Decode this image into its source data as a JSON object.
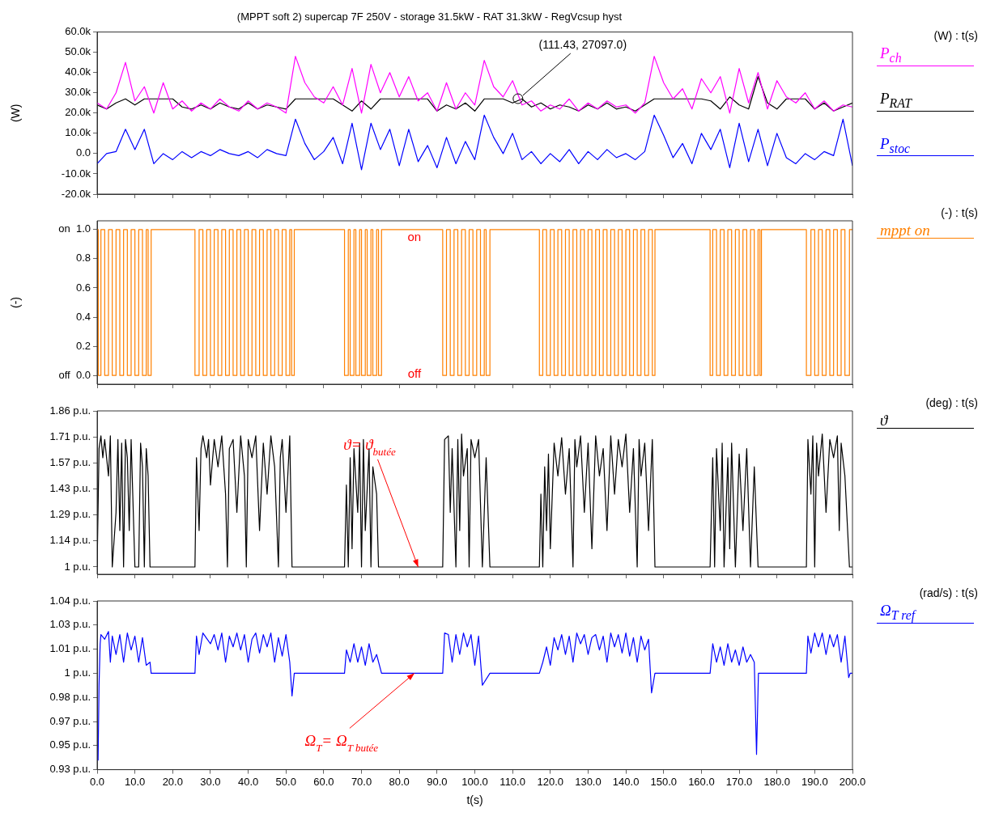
{
  "chart_data": [
    {
      "type": "line",
      "title": "(MPPT soft 2) supercap 7F 250V - storage 31.5kW - RAT 31.3kW - RegVcsup hyst",
      "ylabel": "(W)",
      "legend": "right",
      "marker": "none",
      "tick_labels": "y",
      "annotations": [
        "(W) : t(s)",
        {
          "text": "(111.43, 27097.0)",
          "x": 111.43,
          "y": 27097
        }
      ],
      "xlim": [
        0,
        200
      ],
      "xticks": [
        {
          "value": 0,
          "label": null
        },
        {
          "value": 10,
          "label": null
        },
        {
          "value": 20,
          "label": null
        },
        {
          "value": 30,
          "label": null
        },
        {
          "value": 40,
          "label": null
        },
        {
          "value": 50,
          "label": null
        },
        {
          "value": 60,
          "label": null
        },
        {
          "value": 70,
          "label": null
        },
        {
          "value": 80,
          "label": null
        },
        {
          "value": 90,
          "label": null
        },
        {
          "value": 100,
          "label": null
        },
        {
          "value": 110,
          "label": null
        },
        {
          "value": 120,
          "label": null
        },
        {
          "value": 130,
          "label": null
        },
        {
          "value": 140,
          "label": null
        },
        {
          "value": 150,
          "label": null
        },
        {
          "value": 160,
          "label": null
        },
        {
          "value": 170,
          "label": null
        },
        {
          "value": 180,
          "label": null
        },
        {
          "value": 190,
          "label": null
        },
        {
          "value": 200,
          "label": null
        }
      ],
      "ylim": [
        -20000,
        60000
      ],
      "yticks": [
        {
          "value": -20000,
          "label": "-20.0k"
        },
        {
          "value": -10000,
          "label": "-10.0k"
        },
        {
          "value": 0,
          "label": "0.0"
        },
        {
          "value": 10000,
          "label": "10.0k"
        },
        {
          "value": 20000,
          "label": "20.0k"
        },
        {
          "value": 30000,
          "label": "30.0k"
        },
        {
          "value": 40000,
          "label": "40.0k"
        },
        {
          "value": 50000,
          "label": "50.0k"
        },
        {
          "value": 60000,
          "label": "60.0k"
        }
      ],
      "x": [
        0,
        2.5,
        5,
        7.5,
        10,
        12.5,
        15,
        17.5,
        20,
        22.5,
        25,
        27.5,
        30,
        32.5,
        35,
        37.5,
        40,
        42.5,
        45,
        47.5,
        50,
        52.5,
        55,
        57.5,
        60,
        62.5,
        65,
        67.5,
        70,
        72.5,
        75,
        77.5,
        80,
        82.5,
        85,
        87.5,
        90,
        92.5,
        95,
        97.5,
        100,
        102.5,
        105,
        107.5,
        110,
        112.5,
        115,
        117.5,
        120,
        122.5,
        125,
        127.5,
        130,
        132.5,
        135,
        137.5,
        140,
        142.5,
        145,
        147.5,
        150,
        152.5,
        155,
        157.5,
        160,
        162.5,
        165,
        167.5,
        170,
        172.5,
        175,
        177.5,
        180,
        182.5,
        185,
        187.5,
        190,
        192.5,
        195,
        197.5,
        200
      ],
      "series": [
        {
          "name": "P$_{ch}$",
          "color": "#ff00ff",
          "values": [
            25000,
            22000,
            30000,
            45000,
            26000,
            33000,
            20000,
            35000,
            22000,
            26000,
            21000,
            25000,
            22000,
            27000,
            23000,
            21000,
            26000,
            22000,
            25000,
            23000,
            20000,
            48000,
            35000,
            28000,
            25000,
            33000,
            24000,
            42000,
            20000,
            44000,
            30000,
            40000,
            28000,
            38000,
            26000,
            30000,
            21000,
            35000,
            22000,
            30000,
            24000,
            46000,
            33000,
            28000,
            36000,
            24000,
            26000,
            21000,
            24000,
            22000,
            27000,
            21000,
            25000,
            22000,
            26000,
            23000,
            24000,
            20000,
            25000,
            48000,
            35000,
            27000,
            32000,
            22000,
            37000,
            30000,
            38000,
            20000,
            42000,
            25000,
            40000,
            22000,
            36000,
            28000,
            25000,
            30000,
            22000,
            26000,
            21000,
            24000,
            23000
          ]
        },
        {
          "name": "P$_{RAT}$",
          "color": "#000000",
          "values": [
            24000,
            22000,
            25000,
            27000,
            24000,
            27000,
            27000,
            27000,
            27000,
            23000,
            22000,
            24000,
            22000,
            25000,
            23000,
            22000,
            25000,
            22000,
            24000,
            23000,
            22000,
            27000,
            27000,
            27000,
            27000,
            27000,
            24000,
            21000,
            26000,
            22000,
            27000,
            27000,
            27000,
            27000,
            27000,
            27000,
            21000,
            24000,
            22000,
            25000,
            21000,
            27000,
            27000,
            27000,
            25000,
            27000,
            23000,
            25000,
            22000,
            24000,
            23000,
            21000,
            24000,
            22000,
            25000,
            22000,
            23000,
            21000,
            24000,
            27000,
            27000,
            27000,
            27000,
            27000,
            27000,
            26000,
            22000,
            28000,
            24000,
            22000,
            38000,
            25000,
            22000,
            27000,
            27000,
            27000,
            22000,
            25000,
            21000,
            23000,
            25000
          ]
        },
        {
          "name": "P$_{stoc}$",
          "color": "#0000ff",
          "values": [
            -5000,
            0,
            1000,
            12000,
            2000,
            12000,
            -5000,
            0,
            -3000,
            1000,
            -2000,
            1000,
            -1000,
            2000,
            0,
            -1000,
            1000,
            -2000,
            2000,
            0,
            -1000,
            17000,
            5000,
            -3000,
            1000,
            8000,
            -5000,
            15000,
            -8000,
            15000,
            2000,
            12000,
            -6000,
            12000,
            -4000,
            4000,
            -7000,
            8000,
            -5000,
            6000,
            -3000,
            19000,
            8000,
            0,
            10000,
            -3000,
            1000,
            -5000,
            0,
            -4000,
            2000,
            -5000,
            1000,
            -3000,
            2000,
            -2000,
            0,
            -3000,
            1000,
            19000,
            9000,
            -2000,
            5000,
            -5000,
            10000,
            2000,
            12000,
            -7000,
            15000,
            -4000,
            12000,
            -6000,
            10000,
            -2000,
            -5000,
            0,
            -3000,
            1000,
            -1000,
            17000,
            -6000
          ]
        }
      ]
    },
    {
      "type": "step",
      "ylabel": "(-)",
      "legend": "right",
      "marker": "none",
      "tick_labels": "y",
      "annotations": [
        "(-) : t(s)",
        "on",
        "off"
      ],
      "xlim": [
        0,
        200
      ],
      "xticks": [
        {
          "value": 0,
          "label": null
        },
        {
          "value": 10,
          "label": null
        },
        {
          "value": 20,
          "label": null
        },
        {
          "value": 30,
          "label": null
        },
        {
          "value": 40,
          "label": null
        },
        {
          "value": 50,
          "label": null
        },
        {
          "value": 60,
          "label": null
        },
        {
          "value": 70,
          "label": null
        },
        {
          "value": 80,
          "label": null
        },
        {
          "value": 90,
          "label": null
        },
        {
          "value": 100,
          "label": null
        },
        {
          "value": 110,
          "label": null
        },
        {
          "value": 120,
          "label": null
        },
        {
          "value": 130,
          "label": null
        },
        {
          "value": 140,
          "label": null
        },
        {
          "value": 150,
          "label": null
        },
        {
          "value": 160,
          "label": null
        },
        {
          "value": 170,
          "label": null
        },
        {
          "value": 180,
          "label": null
        },
        {
          "value": 190,
          "label": null
        },
        {
          "value": 200,
          "label": null
        }
      ],
      "ylim": [
        -0.06,
        1.06
      ],
      "yticks": [
        {
          "value": 0,
          "label": "off  0.0"
        },
        {
          "value": 0.2,
          "label": "0.2"
        },
        {
          "value": 0.4,
          "label": "0.4"
        },
        {
          "value": 0.6,
          "label": "0.6"
        },
        {
          "value": 0.8,
          "label": "0.8"
        },
        {
          "value": 1,
          "label": "on  1.0"
        }
      ],
      "series": [
        {
          "name": "mppt on",
          "color": "#ff8000",
          "x": [
            0,
            0.3,
            1,
            2,
            3,
            4,
            5,
            6,
            7,
            8,
            9,
            10,
            11,
            12,
            13,
            13.5,
            14.3,
            25.9,
            27,
            28,
            29,
            30,
            31,
            32,
            33,
            34,
            35,
            36,
            37,
            38,
            39,
            40,
            41,
            42,
            43,
            44,
            45,
            46,
            47,
            48,
            49,
            50,
            51,
            51.5,
            52.2,
            65.5,
            66.5,
            67,
            68,
            68.5,
            69.5,
            70,
            71,
            71.5,
            72.5,
            73,
            74,
            74.5,
            75.3,
            91.5,
            92.5,
            93.5,
            94.5,
            95.5,
            96.5,
            97.5,
            98.5,
            99.5,
            100.5,
            101.5,
            102.5,
            103,
            104,
            117.1,
            118,
            119,
            120,
            121,
            122,
            123,
            124,
            125,
            126,
            127,
            128,
            129,
            130,
            131,
            132,
            133,
            134,
            135,
            136,
            137,
            138,
            139,
            140,
            141,
            142,
            143,
            144,
            145,
            146,
            147,
            147.7,
            162.3,
            163,
            164,
            165,
            166,
            167,
            168,
            169,
            170,
            171,
            172,
            173,
            174,
            175,
            175.5,
            175.9,
            187.8,
            189,
            190,
            191,
            192,
            193,
            194,
            195,
            196,
            197,
            198,
            199.2,
            200
          ],
          "values": [
            1,
            0,
            1,
            0,
            1,
            0,
            1,
            0,
            1,
            0,
            1,
            0,
            1,
            0,
            1,
            0,
            1,
            0,
            1,
            0,
            1,
            0,
            1,
            0,
            1,
            0,
            1,
            0,
            1,
            0,
            1,
            0,
            1,
            0,
            1,
            0,
            1,
            0,
            1,
            0,
            1,
            0,
            1,
            0,
            1,
            0,
            1,
            0,
            1,
            0,
            1,
            0,
            1,
            0,
            1,
            0,
            1,
            0,
            1,
            0,
            1,
            0,
            1,
            0,
            1,
            0,
            1,
            0,
            1,
            0,
            1,
            0,
            1,
            0,
            1,
            0,
            1,
            0,
            1,
            0,
            1,
            0,
            1,
            0,
            1,
            0,
            1,
            0,
            1,
            0,
            1,
            0,
            1,
            0,
            1,
            0,
            1,
            0,
            1,
            0,
            1,
            0,
            1,
            0,
            1,
            0,
            1,
            0,
            1,
            0,
            1,
            0,
            1,
            0,
            1,
            0,
            1,
            0,
            1,
            0,
            1,
            0,
            1,
            0,
            1,
            0,
            1,
            0,
            1,
            0,
            1,
            0,
            1,
            1
          ]
        }
      ]
    },
    {
      "type": "line",
      "legend": "right",
      "marker": "none",
      "tick_labels": "y",
      "annotations": [
        "(deg) : t(s)",
        {
          "text": "ϑ= ϑ$_{butée}$",
          "x": 85,
          "y": 1
        }
      ],
      "xlim": [
        0,
        200
      ],
      "xticks": [
        {
          "value": 0,
          "label": null
        },
        {
          "value": 10,
          "label": null
        },
        {
          "value": 20,
          "label": null
        },
        {
          "value": 30,
          "label": null
        },
        {
          "value": 40,
          "label": null
        },
        {
          "value": 50,
          "label": null
        },
        {
          "value": 60,
          "label": null
        },
        {
          "value": 70,
          "label": null
        },
        {
          "value": 80,
          "label": null
        },
        {
          "value": 90,
          "label": null
        },
        {
          "value": 100,
          "label": null
        },
        {
          "value": 110,
          "label": null
        },
        {
          "value": 120,
          "label": null
        },
        {
          "value": 130,
          "label": null
        },
        {
          "value": 140,
          "label": null
        },
        {
          "value": 150,
          "label": null
        },
        {
          "value": 160,
          "label": null
        },
        {
          "value": 170,
          "label": null
        },
        {
          "value": 180,
          "label": null
        },
        {
          "value": 190,
          "label": null
        },
        {
          "value": 200,
          "label": null
        }
      ],
      "ylim": [
        0.96,
        1.8571
      ],
      "yticks": [
        {
          "value": 1,
          "label": "1 p.u."
        },
        {
          "value": 1.1429,
          "label": "1.14 p.u."
        },
        {
          "value": 1.2857,
          "label": "1.29 p.u."
        },
        {
          "value": 1.4286,
          "label": "1.43 p.u."
        },
        {
          "value": 1.5714,
          "label": "1.57 p.u."
        },
        {
          "value": 1.7143,
          "label": "1.71 p.u."
        },
        {
          "value": 1.8571,
          "label": "1.86 p.u."
        }
      ],
      "series": [
        {
          "name": "ϑ",
          "color": "#000000",
          "x": [
            0,
            0.5,
            1,
            1.5,
            2,
            3,
            3.5,
            4,
            5,
            5.5,
            6,
            6.5,
            7,
            7.5,
            8,
            8.5,
            9,
            10,
            11,
            11.5,
            12,
            12.5,
            13,
            13.5,
            14,
            14.3,
            25.9,
            26.3,
            27,
            27.5,
            28,
            29,
            29.5,
            30,
            31,
            32,
            33,
            34,
            34.5,
            35,
            36,
            37,
            38,
            39,
            39.5,
            40,
            41,
            42,
            43,
            44,
            45,
            46,
            47,
            48,
            48.5,
            49,
            50,
            51,
            51.6,
            52.2,
            65.5,
            66,
            66.5,
            67,
            67.5,
            68,
            69,
            69.5,
            70,
            70.5,
            71,
            72,
            72.5,
            73,
            74,
            74.5,
            75.3,
            91.5,
            92,
            93,
            93.5,
            94,
            95,
            95.5,
            96,
            96.5,
            97,
            98,
            98.5,
            99,
            100,
            101,
            102,
            103,
            104,
            117.1,
            117.5,
            118,
            118.5,
            119,
            119.5,
            120,
            121,
            122,
            123,
            124,
            125,
            126,
            126.5,
            127,
            128,
            129,
            130,
            131,
            132,
            133,
            134,
            135,
            136,
            137,
            138,
            139,
            140,
            141,
            142,
            143,
            143.5,
            144,
            145,
            146,
            147,
            147.7,
            162.3,
            163,
            163.5,
            164,
            165,
            165.5,
            166,
            167,
            167.5,
            168,
            169,
            170,
            171,
            172,
            173,
            174,
            175,
            175.9,
            187.8,
            188.2,
            189,
            189.5,
            190,
            190.5,
            191,
            192,
            193,
            194,
            195,
            196,
            196.5,
            197,
            198,
            199.2,
            200
          ],
          "values": [
            1,
            1.65,
            1.72,
            1.6,
            1.7,
            1.5,
            1.72,
            1,
            1.3,
            1.7,
            1.2,
            1.68,
            1,
            1.7,
            1.6,
            1.2,
            1.7,
            1,
            1,
            1.68,
            1.55,
            1,
            1.65,
            1.5,
            1,
            1,
            1,
            1.6,
            1.2,
            1.65,
            1.72,
            1.6,
            1.7,
            1.45,
            1.7,
            1.55,
            1.72,
            1.4,
            1,
            1.65,
            1.7,
            1.3,
            1.72,
            1.5,
            1,
            1.7,
            1.6,
            1.72,
            1.2,
            1.68,
            1.4,
            1.72,
            1.55,
            1,
            1.6,
            1.7,
            1.3,
            1.72,
            1,
            1,
            1,
            1.45,
            1,
            1.6,
            1.1,
            1.65,
            1.3,
            1.68,
            1,
            1.7,
            1.2,
            1.65,
            1,
            1.55,
            1.4,
            1,
            1,
            1,
            1.7,
            1.72,
            1.3,
            1.65,
            1,
            1.7,
            1.2,
            1.73,
            1.5,
            1.65,
            1,
            1.7,
            1.6,
            1.7,
            1,
            1.6,
            1,
            1,
            1.4,
            1,
            1.55,
            1.2,
            1.62,
            1.1,
            1.68,
            1.5,
            1.71,
            1.4,
            1.65,
            1,
            1.7,
            1.55,
            1.72,
            1.3,
            1.68,
            1.1,
            1.72,
            1.5,
            1.65,
            1.2,
            1.72,
            1.4,
            1.7,
            1.55,
            1.73,
            1.3,
            1.65,
            1,
            1.7,
            1.5,
            1.68,
            1.2,
            1.7,
            1,
            1,
            1.6,
            1,
            1.65,
            1.2,
            1.68,
            1,
            1.6,
            1.1,
            1.68,
            1,
            1.62,
            1.2,
            1.65,
            1,
            1.55,
            1,
            1,
            1,
            1.7,
            1.4,
            1.72,
            1,
            1.68,
            1.5,
            1.73,
            1.3,
            1.7,
            1.6,
            1.72,
            1.2,
            1.68,
            1.5,
            1,
            1
          ]
        }
      ]
    },
    {
      "type": "line",
      "xlabel": "t(s)",
      "legend": "right",
      "marker": "none",
      "annotations": [
        "(rad/s) : t(s)",
        {
          "text": "Ω$_{T}$= Ω$_{T butée}$",
          "x": 84,
          "y": 0.9968
        }
      ],
      "xlim": [
        0,
        200
      ],
      "xticks": [
        {
          "value": 0,
          "label": "0.0"
        },
        {
          "value": 10,
          "label": "10.0"
        },
        {
          "value": 20,
          "label": "20.0"
        },
        {
          "value": 30,
          "label": "30.0"
        },
        {
          "value": 40,
          "label": "40.0"
        },
        {
          "value": 50,
          "label": "50.0"
        },
        {
          "value": 60,
          "label": "60.0"
        },
        {
          "value": 70,
          "label": "70.0"
        },
        {
          "value": 80,
          "label": "80.0"
        },
        {
          "value": 90,
          "label": "90.0"
        },
        {
          "value": 100,
          "label": "100.0"
        },
        {
          "value": 110,
          "label": "110.0"
        },
        {
          "value": 120,
          "label": "120.0"
        },
        {
          "value": 130,
          "label": "130.0"
        },
        {
          "value": 140,
          "label": "140.0"
        },
        {
          "value": 150,
          "label": "150.0"
        },
        {
          "value": 160,
          "label": "160.0"
        },
        {
          "value": 170,
          "label": "170.0"
        },
        {
          "value": 180,
          "label": "180.0"
        },
        {
          "value": 190,
          "label": "190.0"
        },
        {
          "value": 200,
          "label": "200.0"
        }
      ],
      "ylim": [
        0.934,
        1.0439
      ],
      "yticks": [
        {
          "value": 0.934,
          "label": "0.93 p.u."
        },
        {
          "value": 0.9497,
          "label": "0.95 p.u."
        },
        {
          "value": 0.9654,
          "label": "0.97 p.u."
        },
        {
          "value": 0.9811,
          "label": "0.98 p.u."
        },
        {
          "value": 0.9968,
          "label": "1 p.u."
        },
        {
          "value": 1.0125,
          "label": "1.01 p.u."
        },
        {
          "value": 1.0282,
          "label": "1.03 p.u."
        },
        {
          "value": 1.0439,
          "label": "1.04 p.u."
        }
      ],
      "series": [
        {
          "name": "Ω$_{T ref}$",
          "color": "#0000ff",
          "x": [
            0.25,
            0.5,
            0.8,
            1,
            2,
            3,
            3.5,
            4,
            5,
            6,
            7,
            8,
            9,
            10,
            11,
            12,
            13,
            14,
            14.3,
            25.9,
            26.3,
            27,
            28,
            30,
            31,
            32,
            33,
            34,
            35,
            36,
            37,
            38,
            39,
            40,
            41,
            42,
            43,
            44,
            45,
            46,
            47,
            48,
            49,
            50,
            51,
            51.6,
            52.2,
            65.5,
            66,
            67,
            68,
            69,
            70,
            71,
            72,
            73,
            74,
            75.3,
            91.5,
            92,
            93,
            94,
            95,
            96,
            97,
            98,
            99,
            100,
            101,
            102,
            104,
            117.1,
            118,
            119,
            120,
            121,
            122,
            123,
            124,
            125,
            126,
            127,
            128,
            129,
            130,
            131,
            132,
            133,
            134,
            135,
            136,
            137,
            138,
            139,
            140,
            141,
            142,
            143,
            144,
            145,
            146,
            146.8,
            147.7,
            162.3,
            163,
            164,
            165,
            166,
            167,
            168,
            169,
            170,
            171,
            172,
            173,
            174,
            174.6,
            175.1,
            187.8,
            188.2,
            189,
            190,
            191,
            192,
            193,
            194,
            195,
            196,
            197,
            198,
            199,
            199.4,
            200
          ],
          "values": [
            0.94,
            0.989,
            1.016,
            1.022,
            1.019,
            1.024,
            1.004,
            1.021,
            1.009,
            1.022,
            1.004,
            1.023,
            1.012,
            1.021,
            1.004,
            1.02,
            1.002,
            1.004,
            0.9968,
            0.9968,
            1.021,
            1.009,
            1.023,
            1.016,
            1.022,
            1.012,
            1.023,
            1.004,
            1.021,
            1.014,
            1.023,
            1.012,
            1.022,
            1.004,
            1.019,
            1.023,
            1.01,
            1.022,
            1.014,
            1.023,
            1.004,
            1.02,
            1.008,
            1.022,
            1.004,
            0.982,
            0.9968,
            0.9968,
            1.012,
            1.004,
            1.016,
            1.004,
            1.014,
            1.002,
            1.016,
            1.004,
            1.009,
            0.9968,
            0.9968,
            1.023,
            1.022,
            1.004,
            1.022,
            1.009,
            1.023,
            1.014,
            1.022,
            1.002,
            1.021,
            0.989,
            0.9968,
            0.9968,
            1.004,
            1.014,
            1.002,
            1.02,
            1.012,
            1.022,
            1.009,
            1.021,
            1.004,
            1.023,
            1.016,
            1.022,
            1.009,
            1.02,
            1.022,
            1.012,
            1.021,
            1.004,
            1.023,
            1.014,
            1.022,
            1.01,
            1.023,
            1.008,
            1.02,
            1.004,
            1.021,
            1.012,
            1.019,
            0.984,
            0.9968,
            0.9968,
            1.016,
            1.004,
            1.014,
            1.002,
            1.016,
            1.004,
            1.012,
            1.002,
            1.014,
            1.004,
            1.009,
            1.004,
            0.944,
            0.9968,
            0.9968,
            1.021,
            1.01,
            1.023,
            1.014,
            1.023,
            1.009,
            1.022,
            1.014,
            1.022,
            1.004,
            1.021,
            0.994,
            0.9968,
            0.9968
          ]
        }
      ]
    }
  ]
}
